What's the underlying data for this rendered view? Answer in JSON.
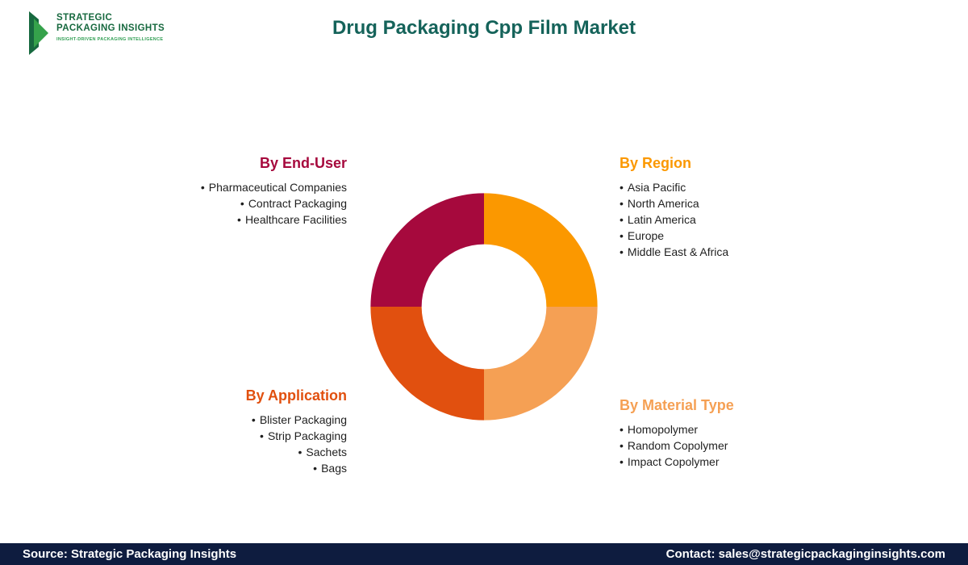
{
  "header": {
    "title": "Drug Packaging Cpp Film Market"
  },
  "logo": {
    "line1": "STRATEGIC",
    "line2": "PACKAGING INSIGHTS",
    "tagline": "INSIGHT-DRIVEN PACKAGING INTELLIGENCE"
  },
  "ui": {
    "bullet": "•"
  },
  "colors": {
    "title": "#15635A",
    "logo_green": "#17693F",
    "logo_light_green": "#2F9E53",
    "footer_bg": "#0E1C3F",
    "footer_text": "#FFFFFF"
  },
  "segments": [
    {
      "heading": "By End-User",
      "color": "#A6093D",
      "items": [
        "Pharmaceutical Companies",
        "Contract Packaging",
        "Healthcare Facilities"
      ]
    },
    {
      "heading": "By Region",
      "color": "#FB9800",
      "items": [
        "Asia Pacific",
        "North America",
        "Latin America",
        "Europe",
        "Middle East & Africa"
      ]
    },
    {
      "heading": "By Application",
      "color": "#E1500F",
      "items": [
        "Blister Packaging",
        "Strip Packaging",
        "Sachets",
        "Bags"
      ]
    },
    {
      "heading": "By Material Type",
      "color": "#F5A054",
      "items": [
        "Homopolymer",
        "Random Copolymer",
        "Impact Copolymer"
      ]
    }
  ],
  "chart_data": {
    "type": "pie",
    "donut": true,
    "title": "Drug Packaging Cpp Film Market",
    "categories": [
      "By Region",
      "By Material Type",
      "By Application",
      "By End-User"
    ],
    "slice_names": [
      "by-region",
      "by-material-type",
      "by-application",
      "by-end-user"
    ],
    "values": [
      25,
      25,
      25,
      25
    ],
    "colors": [
      "#FB9800",
      "#F5A054",
      "#E1500F",
      "#A6093D"
    ],
    "start_angle_deg": 0,
    "inner_radius_ratio": 0.55,
    "legend_position": "none"
  },
  "footer": {
    "source": "Source: Strategic Packaging Insights",
    "contact": "Contact: sales@strategicpackaginginsights.com"
  }
}
